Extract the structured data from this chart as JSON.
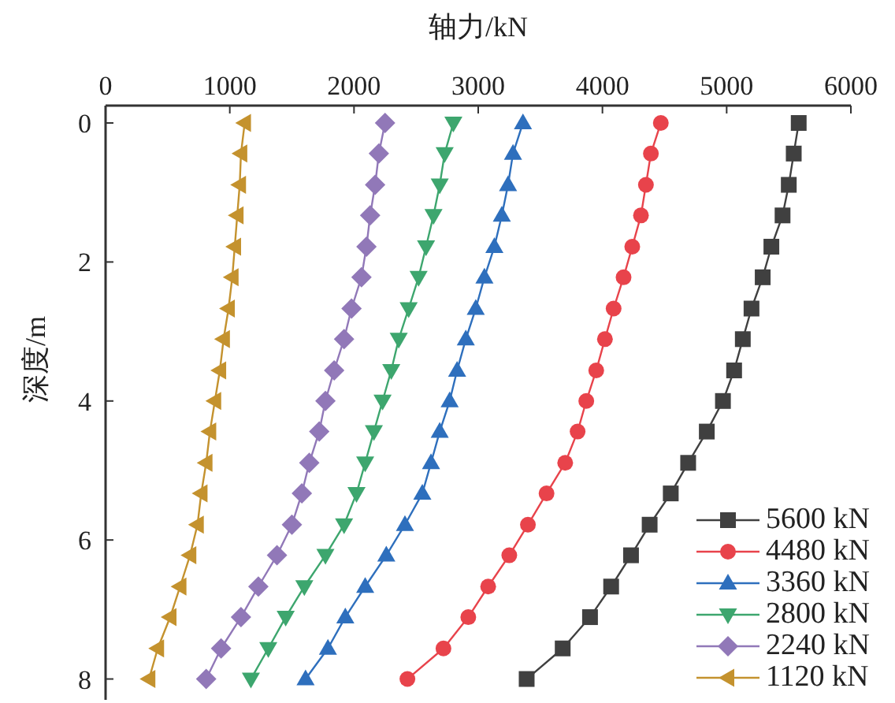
{
  "chart_data": {
    "type": "line",
    "xlabel": "轴力/kN",
    "ylabel": "深度/m",
    "xlim": [
      0,
      6000
    ],
    "xticks": [
      0,
      1000,
      2000,
      3000,
      4000,
      5000,
      6000
    ],
    "ylim": [
      8.3,
      -0.25
    ],
    "yticks": [
      0,
      2,
      4,
      6,
      8
    ],
    "grid": false,
    "legend": "bottom right",
    "line_style": "solid",
    "series": [
      {
        "name": "5600 kN",
        "color": "#404040",
        "marker": "square",
        "x": [
          5580,
          5540,
          5500,
          5450,
          5360,
          5290,
          5200,
          5130,
          5060,
          4970,
          4840,
          4690,
          4550,
          4380,
          4230,
          4070,
          3900,
          3680,
          3390
        ],
        "values": [
          0,
          0.44,
          0.89,
          1.33,
          1.78,
          2.22,
          2.67,
          3.11,
          3.56,
          4,
          4.44,
          4.89,
          5.33,
          5.78,
          6.22,
          6.67,
          7.11,
          7.56,
          8
        ]
      },
      {
        "name": "4480 kN",
        "color": "#e8434b",
        "marker": "circle",
        "x": [
          4470,
          4390,
          4350,
          4310,
          4240,
          4170,
          4090,
          4020,
          3950,
          3870,
          3800,
          3700,
          3550,
          3400,
          3250,
          3080,
          2920,
          2720,
          2430
        ],
        "values": [
          0,
          0.44,
          0.89,
          1.33,
          1.78,
          2.22,
          2.67,
          3.11,
          3.56,
          4,
          4.44,
          4.89,
          5.33,
          5.78,
          6.22,
          6.67,
          7.11,
          7.56,
          8
        ]
      },
      {
        "name": "3360 kN",
        "color": "#2e6fbd",
        "marker": "triangle",
        "x": [
          3360,
          3280,
          3240,
          3190,
          3130,
          3050,
          2980,
          2900,
          2830,
          2770,
          2690,
          2620,
          2550,
          2410,
          2260,
          2090,
          1930,
          1790,
          1610
        ],
        "values": [
          0,
          0.44,
          0.89,
          1.33,
          1.78,
          2.22,
          2.67,
          3.11,
          3.56,
          4,
          4.44,
          4.89,
          5.33,
          5.78,
          6.22,
          6.67,
          7.11,
          7.56,
          8
        ]
      },
      {
        "name": "2800 kN",
        "color": "#3da66e",
        "marker": "triangle-down",
        "x": [
          2800,
          2730,
          2690,
          2640,
          2580,
          2520,
          2440,
          2360,
          2300,
          2230,
          2160,
          2090,
          2020,
          1920,
          1770,
          1600,
          1450,
          1310,
          1170
        ],
        "values": [
          0,
          0.44,
          0.89,
          1.33,
          1.78,
          2.22,
          2.67,
          3.11,
          3.56,
          4,
          4.44,
          4.89,
          5.33,
          5.78,
          6.22,
          6.67,
          7.11,
          7.56,
          8
        ]
      },
      {
        "name": "2240 kN",
        "color": "#9178b8",
        "marker": "diamond",
        "x": [
          2250,
          2200,
          2170,
          2130,
          2100,
          2060,
          1980,
          1920,
          1840,
          1770,
          1720,
          1640,
          1580,
          1500,
          1380,
          1230,
          1090,
          930,
          810
        ],
        "values": [
          0,
          0.44,
          0.89,
          1.33,
          1.78,
          2.22,
          2.67,
          3.11,
          3.56,
          4,
          4.44,
          4.89,
          5.33,
          5.78,
          6.22,
          6.67,
          7.11,
          7.56,
          8
        ]
      },
      {
        "name": "1120 kN",
        "color": "#c4922e",
        "marker": "triangle-left",
        "x": [
          1120,
          1090,
          1080,
          1060,
          1040,
          1020,
          990,
          950,
          920,
          880,
          840,
          810,
          770,
          740,
          680,
          600,
          520,
          420,
          350
        ],
        "values": [
          0,
          0.44,
          0.89,
          1.33,
          1.78,
          2.22,
          2.67,
          3.11,
          3.56,
          4,
          4.44,
          4.89,
          5.33,
          5.78,
          6.22,
          6.67,
          7.11,
          7.56,
          8
        ]
      }
    ]
  }
}
